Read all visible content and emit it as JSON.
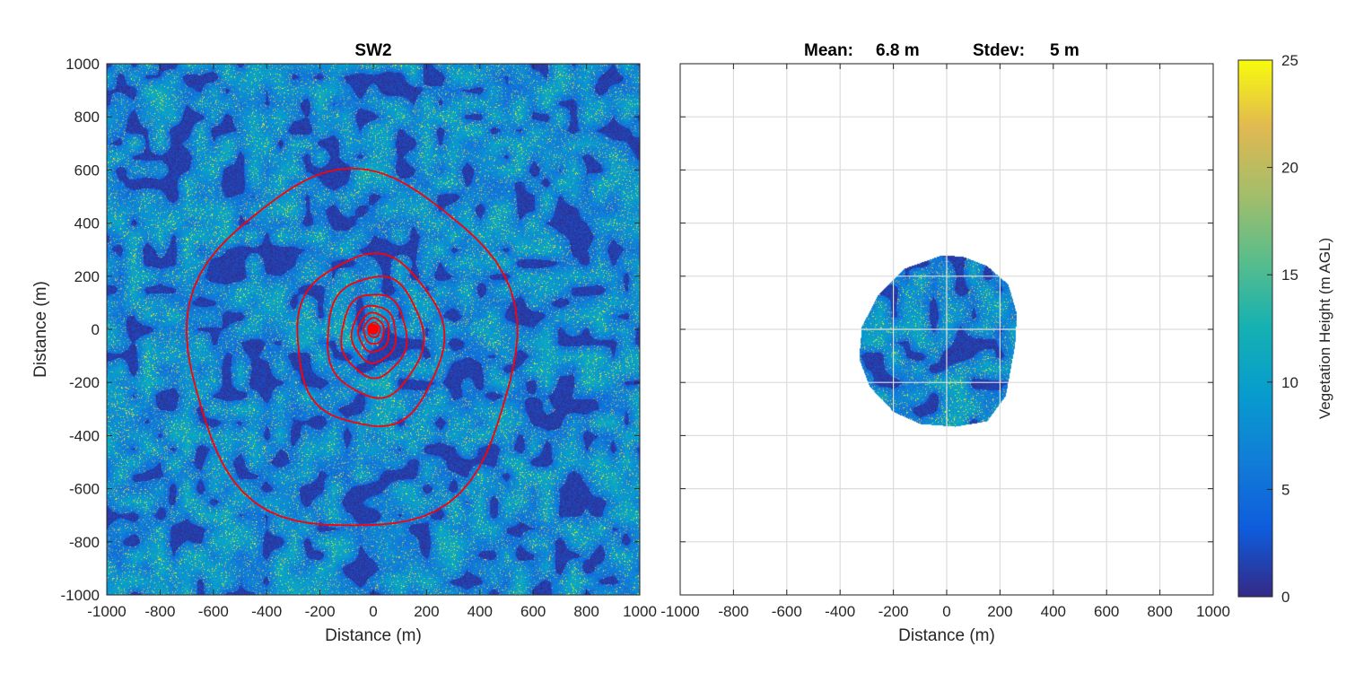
{
  "chart_data": [
    {
      "type": "heatmap",
      "title": "SW2",
      "xlabel": "Distance (m)",
      "ylabel": "Distance (m)",
      "xlim": [
        -1000,
        1000
      ],
      "ylim": [
        -1000,
        1000
      ],
      "xticks": [
        -1000,
        -800,
        -600,
        -400,
        -200,
        0,
        200,
        400,
        600,
        800,
        1000
      ],
      "yticks": [
        -1000,
        -800,
        -600,
        -400,
        -200,
        0,
        200,
        400,
        600,
        800,
        1000
      ],
      "grid": false,
      "colormap": "parula",
      "clim": [
        0,
        25
      ],
      "tower_location": [
        0,
        0
      ],
      "contour_color": "#ff0000",
      "contours_extent_xmin_xmax_ymin_ymax": [
        [
          -695,
          535,
          -758,
          586
        ],
        [
          -290,
          260,
          -367,
          280
        ],
        [
          -175,
          185,
          -255,
          200
        ],
        [
          -120,
          125,
          -180,
          135
        ],
        [
          -80,
          85,
          -125,
          90
        ],
        [
          -55,
          60,
          -85,
          62
        ],
        [
          -35,
          40,
          -55,
          42
        ],
        [
          -20,
          25,
          -30,
          25
        ]
      ]
    },
    {
      "type": "heatmap",
      "title_mean_label": "Mean:",
      "title_mean_value": "6.8 m",
      "title_stdev_label": "Stdev:",
      "title_stdev_value": "5 m",
      "mean": 6.8,
      "stdev": 5,
      "xlabel": "Distance (m)",
      "xlim": [
        -1000,
        1000
      ],
      "ylim": [
        -1000,
        1000
      ],
      "xticks": [
        -1000,
        -800,
        -600,
        -400,
        -200,
        0,
        200,
        400,
        600,
        800,
        1000
      ],
      "grid": true,
      "footprint_outline": [
        [
          -20,
          280
        ],
        [
          60,
          275
        ],
        [
          150,
          240
        ],
        [
          230,
          170
        ],
        [
          262,
          60
        ],
        [
          255,
          -60
        ],
        [
          220,
          -250
        ],
        [
          150,
          -345
        ],
        [
          30,
          -365
        ],
        [
          -100,
          -355
        ],
        [
          -200,
          -310
        ],
        [
          -290,
          -215
        ],
        [
          -330,
          -110
        ],
        [
          -320,
          10
        ],
        [
          -260,
          130
        ],
        [
          -160,
          230
        ]
      ]
    }
  ],
  "colorbar": {
    "label": "Vegetation Height (m AGL)",
    "ticks": [
      0,
      5,
      10,
      15,
      20,
      25
    ],
    "range": [
      0,
      25
    ]
  }
}
